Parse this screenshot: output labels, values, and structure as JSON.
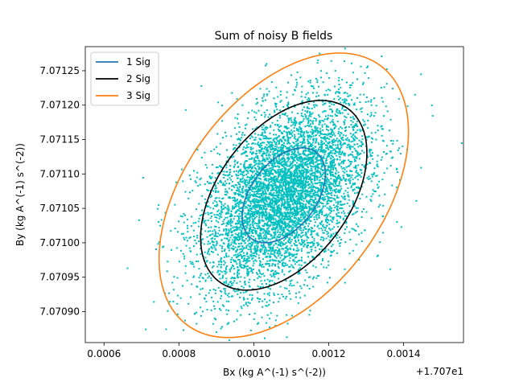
{
  "chart_data": {
    "type": "scatter",
    "title": "Sum of noisy B fields",
    "xlabel": "Bx (kg A^(-1) s^(-2))",
    "ylabel": "By (kg A^(-1) s^(-2))",
    "x_offset_label": "+1.707e1",
    "xlim": [
      0.00055,
      0.00156
    ],
    "ylim": [
      7.070855,
      7.071285
    ],
    "x_ticks": [
      0.0006,
      0.0008,
      0.001,
      0.0012,
      0.0014
    ],
    "x_tick_labels": [
      "0.0006",
      "0.0008",
      "0.0010",
      "0.0012",
      "0.0014"
    ],
    "y_ticks": [
      7.0709,
      7.07095,
      7.071,
      7.07105,
      7.0711,
      7.07115,
      7.0712,
      7.07125
    ],
    "y_tick_labels": [
      "7.07090",
      "7.07095",
      "7.07100",
      "7.07105",
      "7.07110",
      "7.07115",
      "7.07120",
      "7.07125"
    ],
    "scatter": {
      "color": "#00bfbf",
      "count": 6000,
      "mean": [
        0.00108,
        7.071069
      ],
      "std": [
        0.000111,
        6.89e-05
      ],
      "correlation": 0.447
    },
    "ellipses": [
      {
        "name": "1 Sig",
        "color": "#1f77b4",
        "sigma": 1
      },
      {
        "name": "2 Sig",
        "color": "#000000",
        "sigma": 2
      },
      {
        "name": "3 Sig",
        "color": "#ff7f0e",
        "sigma": 3
      }
    ],
    "legend_position": "top-left",
    "grid": false
  }
}
